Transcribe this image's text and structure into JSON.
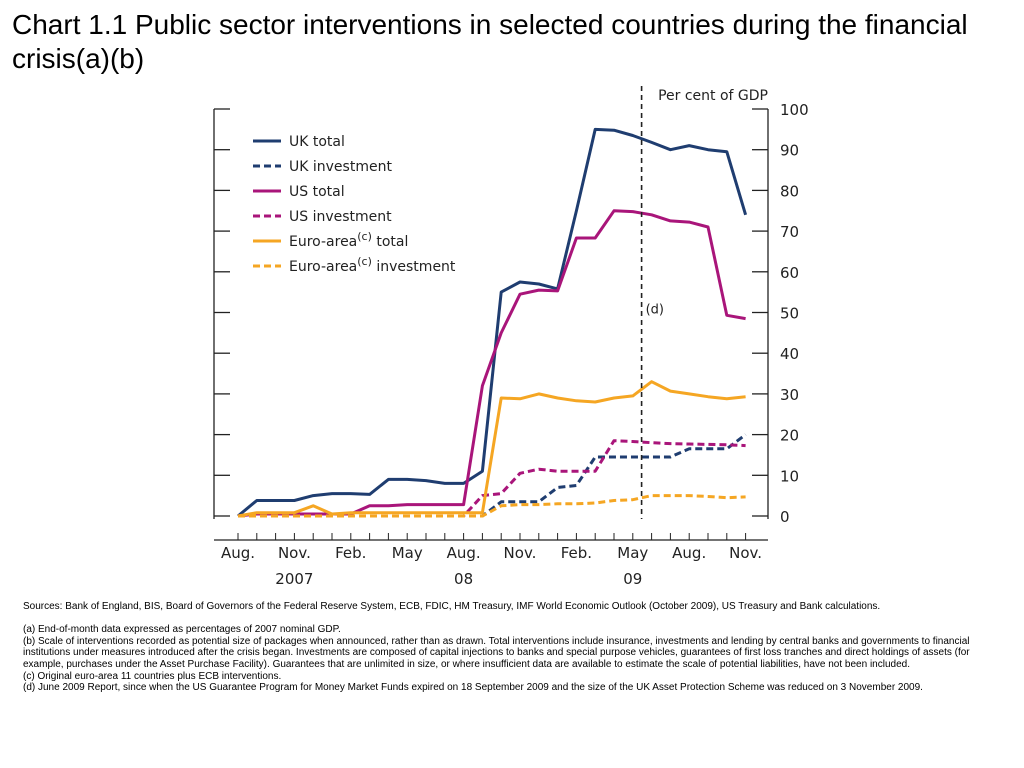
{
  "header": {
    "title": "Chart 1.1  Public sector interventions in selected countries during the financial crisis(a)(b)"
  },
  "chart_data": {
    "type": "line",
    "ylabel": "Per cent of GDP",
    "ylim": [
      0,
      100
    ],
    "yticks": [
      0,
      10,
      20,
      30,
      40,
      50,
      60,
      70,
      80,
      90,
      100
    ],
    "x": [
      "2007-08",
      "2007-09",
      "2007-10",
      "2007-11",
      "2007-12",
      "2008-01",
      "2008-02",
      "2008-03",
      "2008-04",
      "2008-05",
      "2008-06",
      "2008-07",
      "2008-08",
      "2008-09",
      "2008-10",
      "2008-11",
      "2008-12",
      "2009-01",
      "2009-02",
      "2009-03",
      "2009-04",
      "2009-05",
      "2009-06",
      "2009-07",
      "2009-08",
      "2009-09",
      "2009-10",
      "2009-11"
    ],
    "xticks": [
      {
        "x": "2007-08",
        "label": "Aug."
      },
      {
        "x": "2007-11",
        "label": "Nov."
      },
      {
        "x": "2008-02",
        "label": "Feb."
      },
      {
        "x": "2008-05",
        "label": "May"
      },
      {
        "x": "2008-08",
        "label": "Aug."
      },
      {
        "x": "2008-11",
        "label": "Nov."
      },
      {
        "x": "2009-02",
        "label": "Feb."
      },
      {
        "x": "2009-05",
        "label": "May"
      },
      {
        "x": "2009-08",
        "label": "Aug."
      },
      {
        "x": "2009-11",
        "label": "Nov."
      }
    ],
    "years": [
      {
        "x": "2007-11",
        "label": "2007"
      },
      {
        "x": "2008-08",
        "label": "08"
      },
      {
        "x": "2009-05",
        "label": "09"
      }
    ],
    "series": [
      {
        "name": "UK total",
        "color": "#1f3d70",
        "dashed": false,
        "values": [
          0,
          3.8,
          3.8,
          3.8,
          5,
          5.5,
          5.5,
          5.3,
          9,
          9,
          8.7,
          8,
          8,
          11,
          55,
          57.5,
          57,
          55.8,
          75,
          95,
          94.8,
          93.5,
          91.8,
          90,
          91,
          90,
          89.5,
          74
        ]
      },
      {
        "name": "UK investment",
        "color": "#1f3d70",
        "dashed": true,
        "values": [
          0,
          0,
          0,
          0,
          0,
          0,
          0,
          0,
          0,
          0,
          0,
          0,
          0,
          0,
          3.5,
          3.5,
          3.5,
          7,
          7.5,
          14.5,
          14.5,
          14.5,
          14.5,
          14.5,
          16.5,
          16.5,
          16.5,
          20
        ]
      },
      {
        "name": "US total",
        "color": "#a9157a",
        "dashed": false,
        "values": [
          0,
          0.5,
          0.5,
          0.5,
          0.5,
          0.5,
          0.5,
          2.5,
          2.5,
          2.8,
          2.8,
          2.8,
          2.8,
          32,
          45,
          54.5,
          55.5,
          55.3,
          68.3,
          68.3,
          75,
          74.8,
          74,
          72.5,
          72.2,
          71,
          49.3,
          48.5
        ]
      },
      {
        "name": "US investment",
        "color": "#a9157a",
        "dashed": true,
        "values": [
          0,
          0,
          0,
          0,
          0,
          0,
          0,
          0,
          0,
          0,
          0,
          0,
          0,
          5,
          5.5,
          10.5,
          11.5,
          11,
          11,
          11,
          18.5,
          18.3,
          18,
          17.8,
          17.7,
          17.6,
          17.5,
          17.3
        ]
      },
      {
        "name": "Euro-area total",
        "color": "#f5a623",
        "dashed": false,
        "values": [
          0,
          0.8,
          0.8,
          0.8,
          2.5,
          0.5,
          0.8,
          0.8,
          0.8,
          0.8,
          0.8,
          0.8,
          0.8,
          0.8,
          29,
          28.8,
          30,
          29,
          28.3,
          28,
          29,
          29.5,
          33,
          30.7,
          30,
          29.3,
          28.8,
          29.3
        ]
      },
      {
        "name": "Euro-area investment",
        "color": "#f5a623",
        "dashed": true,
        "values": [
          0,
          0,
          0,
          0,
          0,
          0,
          0,
          0,
          0,
          0,
          0,
          0,
          0,
          0,
          2.5,
          2.8,
          2.8,
          3,
          3,
          3.2,
          3.8,
          4,
          5,
          5,
          5,
          4.8,
          4.5,
          4.7
        ]
      }
    ],
    "legend": {
      "placement": "top-left",
      "entries": [
        {
          "pre": "UK total",
          "sup": "",
          "post": ""
        },
        {
          "pre": "UK investment",
          "sup": "",
          "post": ""
        },
        {
          "pre": "US total",
          "sup": "",
          "post": ""
        },
        {
          "pre": "US investment",
          "sup": "",
          "post": ""
        },
        {
          "pre": "Euro-area",
          "sup": "(c)",
          "post": " total"
        },
        {
          "pre": "Euro-area",
          "sup": "(c)",
          "post": " investment"
        }
      ]
    },
    "annotations": [
      {
        "type": "vertical-dashed-line",
        "x": "2009-06",
        "label": "(d)",
        "label_y": 51
      }
    ],
    "grid": false
  },
  "notes": {
    "sources": "Sources:  Bank of England, BIS, Board of Governors of the Federal Reserve System, ECB, FDIC, HM Treasury, IMF World Economic Outlook (October 2009), US Treasury and Bank calculations.",
    "a": "(a)  End-of-month data expressed as percentages of 2007 nominal GDP.",
    "b": "(b)  Scale of interventions recorded as potential size of packages when announced, rather than as drawn.  Total interventions include insurance, investments and lending by central banks and governments to financial institutions under measures introduced after the crisis began. Investments are composed of capital injections to banks and special purpose vehicles, guarantees of first loss tranches and direct holdings of assets (for example, purchases under the Asset Purchase Facility).  Guarantees that are unlimited in size, or where insufficient data are available to estimate the scale of potential liabilities, have not been included.",
    "c": "(c)  Original euro-area 11 countries plus ECB interventions.",
    "d": "(d)  June 2009 Report, since when the US Guarantee Program for Money Market Funds expired on 18 September 2009 and the size of the UK Asset Protection Scheme was reduced on 3 November 2009."
  }
}
